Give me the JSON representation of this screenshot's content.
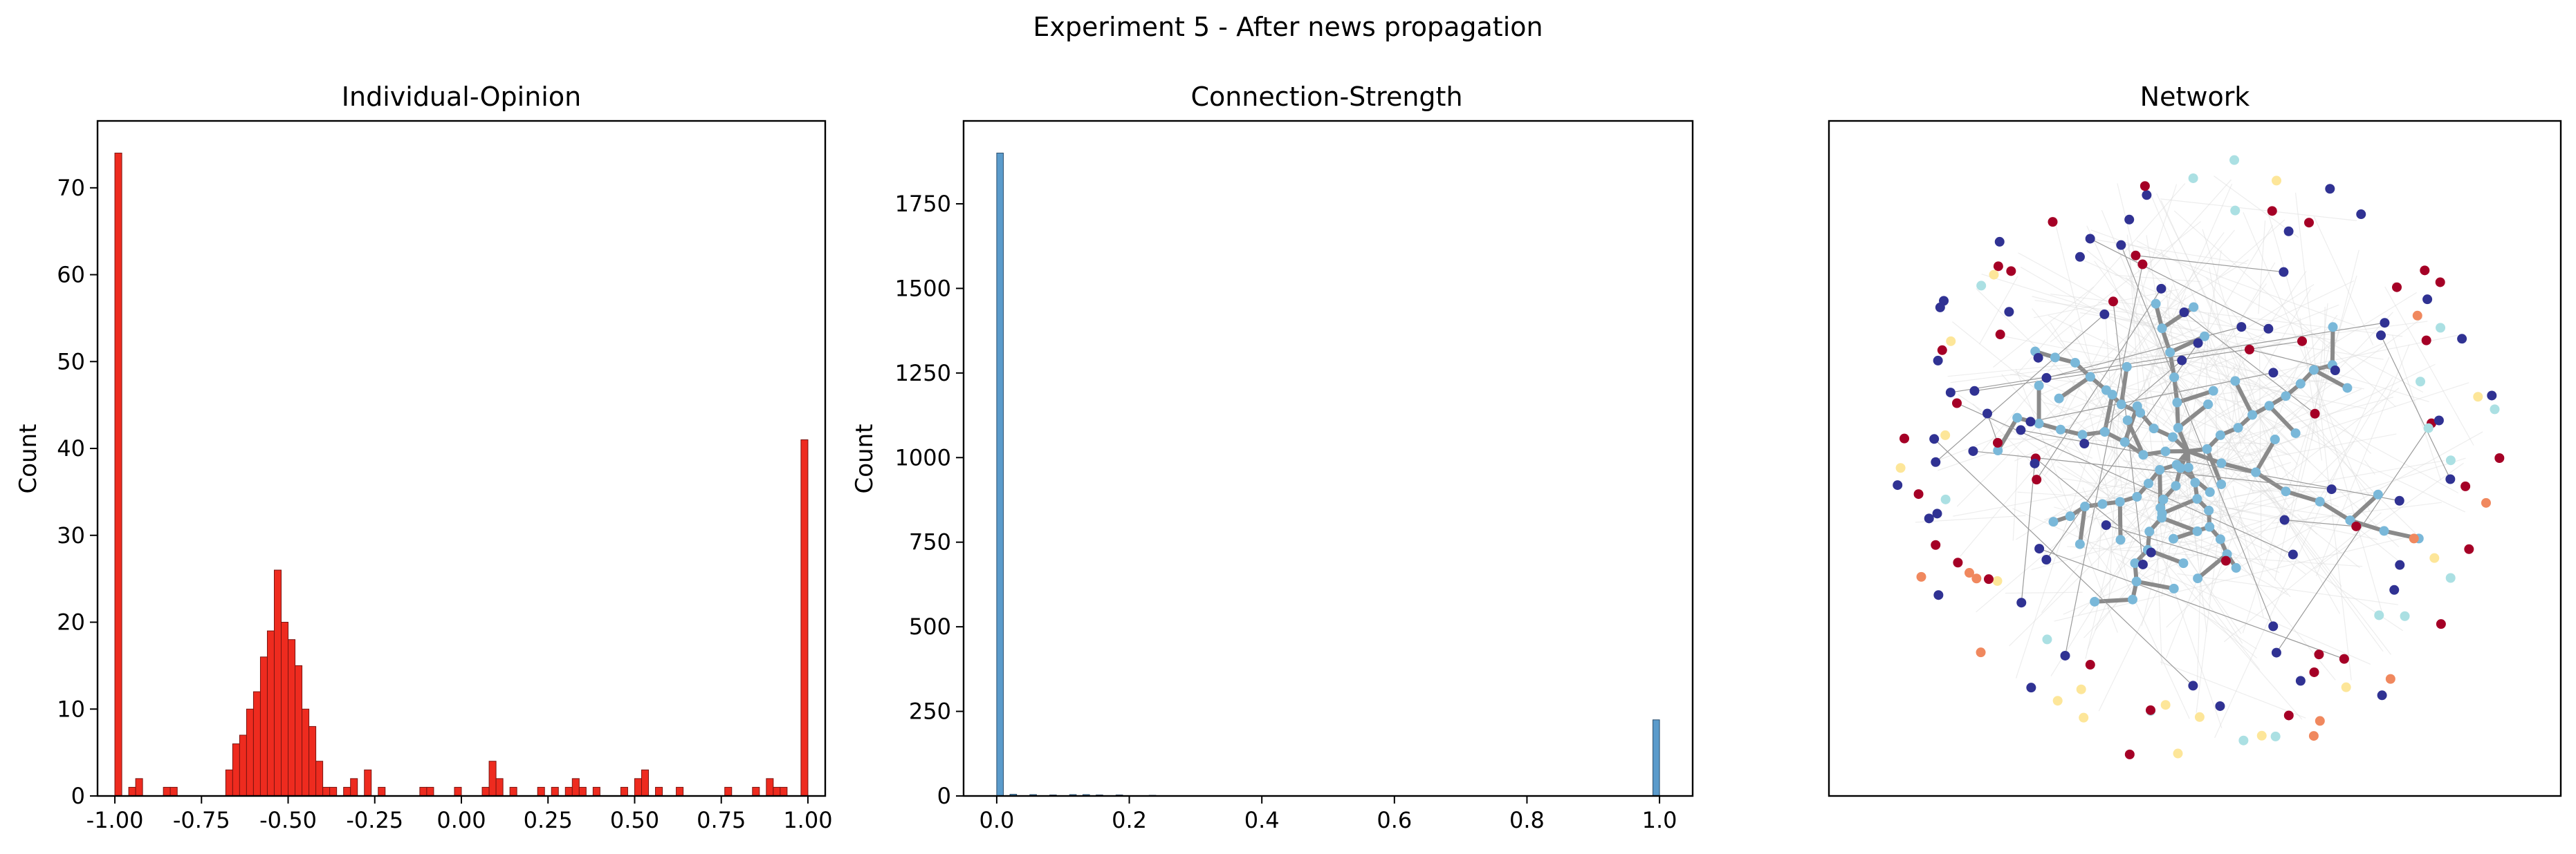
{
  "figure": {
    "suptitle": "Experiment 5 - After news propagation"
  },
  "chart_data": [
    {
      "type": "bar",
      "title": "Individual-Opinion",
      "xlabel": "",
      "ylabel": "Count",
      "xlim": [
        -1.05,
        1.05
      ],
      "ylim": [
        0,
        77.7
      ],
      "xticks": [
        "-1.00",
        "-0.75",
        "-0.50",
        "-0.25",
        "0.00",
        "0.25",
        "0.50",
        "0.75",
        "1.00"
      ],
      "yticks": [
        "0",
        "10",
        "20",
        "30",
        "40",
        "50",
        "60",
        "70"
      ],
      "bin_width": 0.02,
      "bar_color": "#ee2b1f",
      "edge_color": "#7a1410",
      "bins": [
        [
          -1.0,
          74
        ],
        [
          -0.96,
          1
        ],
        [
          -0.94,
          2
        ],
        [
          -0.86,
          1
        ],
        [
          -0.84,
          1
        ],
        [
          -0.68,
          3
        ],
        [
          -0.66,
          6
        ],
        [
          -0.64,
          7
        ],
        [
          -0.62,
          10
        ],
        [
          -0.6,
          12
        ],
        [
          -0.58,
          16
        ],
        [
          -0.56,
          19
        ],
        [
          -0.54,
          26
        ],
        [
          -0.52,
          20
        ],
        [
          -0.5,
          18
        ],
        [
          -0.48,
          15
        ],
        [
          -0.46,
          10
        ],
        [
          -0.44,
          8
        ],
        [
          -0.42,
          4
        ],
        [
          -0.4,
          1
        ],
        [
          -0.38,
          1
        ],
        [
          -0.34,
          1
        ],
        [
          -0.32,
          2
        ],
        [
          -0.28,
          3
        ],
        [
          -0.24,
          1
        ],
        [
          -0.12,
          1
        ],
        [
          -0.1,
          1
        ],
        [
          -0.02,
          1
        ],
        [
          0.06,
          1
        ],
        [
          0.08,
          4
        ],
        [
          0.1,
          2
        ],
        [
          0.14,
          1
        ],
        [
          0.22,
          1
        ],
        [
          0.26,
          1
        ],
        [
          0.3,
          1
        ],
        [
          0.32,
          2
        ],
        [
          0.34,
          1
        ],
        [
          0.38,
          1
        ],
        [
          0.46,
          1
        ],
        [
          0.5,
          2
        ],
        [
          0.52,
          3
        ],
        [
          0.56,
          1
        ],
        [
          0.62,
          1
        ],
        [
          0.76,
          1
        ],
        [
          0.84,
          1
        ],
        [
          0.88,
          2
        ],
        [
          0.9,
          1
        ],
        [
          0.92,
          1
        ],
        [
          0.98,
          41
        ]
      ]
    },
    {
      "type": "bar",
      "title": "Connection-Strength",
      "xlabel": "",
      "ylabel": "Count",
      "xlim": [
        -0.05,
        1.05
      ],
      "ylim": [
        0,
        1995
      ],
      "xticks": [
        "0.0",
        "0.2",
        "0.4",
        "0.6",
        "0.8",
        "1.0"
      ],
      "yticks": [
        "0",
        "250",
        "500",
        "750",
        "1000",
        "1250",
        "1500",
        "1750"
      ],
      "bin_width": 0.01,
      "bar_color": "#5b9bcb",
      "edge_color": "#2b4f6e",
      "bins": [
        [
          0.0,
          1900
        ],
        [
          0.02,
          5
        ],
        [
          0.05,
          4
        ],
        [
          0.08,
          3
        ],
        [
          0.11,
          4
        ],
        [
          0.13,
          4
        ],
        [
          0.15,
          3
        ],
        [
          0.18,
          3
        ],
        [
          0.23,
          2
        ],
        [
          0.99,
          225
        ]
      ]
    },
    {
      "type": "network",
      "title": "Network",
      "node_colors": [
        "#303293",
        "#a50026",
        "#7ab8d9",
        "#f0885e",
        "#fde699",
        "#abe0e3"
      ]
    }
  ]
}
